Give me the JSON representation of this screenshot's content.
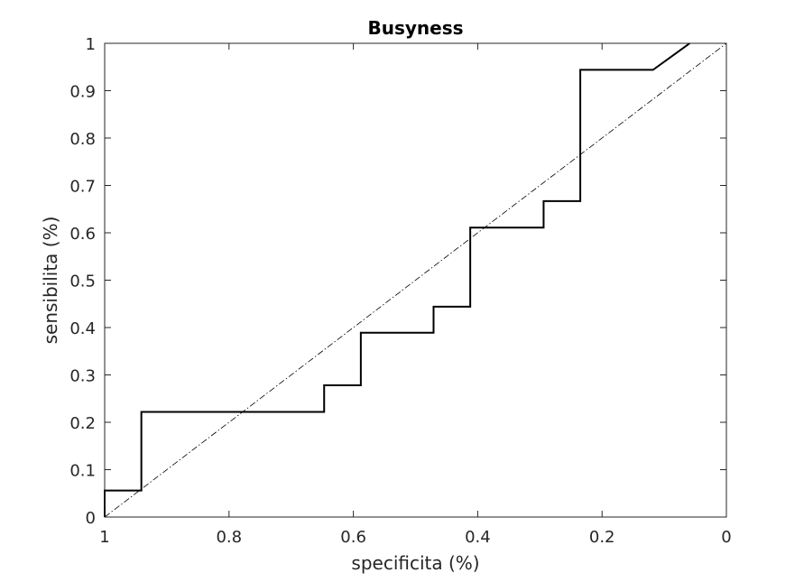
{
  "chart_data": {
    "type": "line",
    "title": "Busyness",
    "xlabel": "specificita (%)",
    "ylabel": "sensibilita (%)",
    "xlim": [
      1,
      0
    ],
    "ylim": [
      0,
      1
    ],
    "x_reversed": true,
    "grid": false,
    "x_ticks": [
      1,
      0.8,
      0.6,
      0.4,
      0.2,
      0
    ],
    "x_tick_labels": [
      "1",
      "0.8",
      "0.6",
      "0.4",
      "0.2",
      "0"
    ],
    "y_ticks": [
      0,
      0.1,
      0.2,
      0.3,
      0.4,
      0.5,
      0.6,
      0.7,
      0.8,
      0.9,
      1
    ],
    "y_tick_labels": [
      "0",
      "0.1",
      "0.2",
      "0.3",
      "0.4",
      "0.5",
      "0.6",
      "0.7",
      "0.8",
      "0.9",
      "1"
    ],
    "series": [
      {
        "style": "solid",
        "color": "#000000",
        "x": [
          1,
          1,
          0.941,
          0.941,
          0.647,
          0.647,
          0.588,
          0.588,
          0.471,
          0.471,
          0.412,
          0.412,
          0.294,
          0.294,
          0.235,
          0.235,
          0.118,
          0.059
        ],
        "y": [
          0,
          0.056,
          0.056,
          0.222,
          0.222,
          0.278,
          0.278,
          0.389,
          0.389,
          0.444,
          0.444,
          0.611,
          0.611,
          0.667,
          0.667,
          0.944,
          0.944,
          1
        ]
      },
      {
        "style": "dash-dot",
        "color": "#000000",
        "x": [
          1,
          0
        ],
        "y": [
          0,
          1
        ]
      }
    ]
  }
}
